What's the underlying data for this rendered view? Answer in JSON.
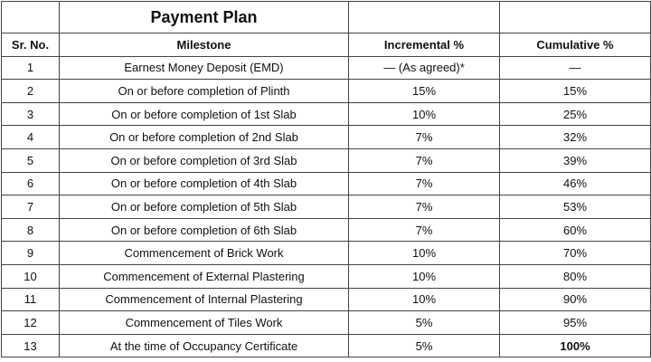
{
  "table": {
    "title": "Payment Plan",
    "header": [
      "Sr. No.",
      "Milestone",
      "Incremental %",
      "Cumulative %"
    ],
    "rows": [
      [
        "1",
        "Earnest Money Deposit (EMD)",
        "— (As agreed)*",
        "—"
      ],
      [
        "2",
        "On or before completion of Plinth",
        "15%",
        "15%"
      ],
      [
        "3",
        "On or before completion of 1st Slab",
        "10%",
        "25%"
      ],
      [
        "4",
        "On or before completion of 2nd Slab",
        "7%",
        "32%"
      ],
      [
        "5",
        "On or before completion of 3rd Slab",
        "7%",
        "39%"
      ],
      [
        "6",
        "On or before completion of 4th Slab",
        "7%",
        "46%"
      ],
      [
        "7",
        "On or before completion of 5th Slab",
        "7%",
        "53%"
      ],
      [
        "8",
        "On or before completion of 6th Slab",
        "7%",
        "60%"
      ],
      [
        "9",
        "Commencement of Brick Work",
        "10%",
        "70%"
      ],
      [
        "10",
        "Commencement of External Plastering",
        "10%",
        "80%"
      ],
      [
        "11",
        "Commencement of Internal Plastering",
        "10%",
        "90%"
      ],
      [
        "12",
        "Commencement of Tiles Work",
        "5%",
        "95%"
      ],
      [
        "13",
        "At the time of Occupancy Certificate",
        "5%",
        "100%"
      ]
    ]
  }
}
